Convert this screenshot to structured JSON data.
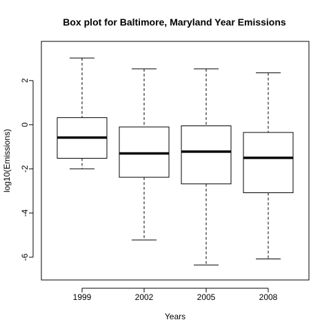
{
  "chart_data": {
    "type": "boxplot",
    "title": "Box plot for Baltimore, Maryland Year Emissions",
    "xlabel": "Years",
    "ylabel": "log10(Emissions)",
    "categories": [
      "1999",
      "2002",
      "2005",
      "2008"
    ],
    "boxes": [
      {
        "category": "1999",
        "whisker_low": -2.0,
        "q1": -1.52,
        "median": -0.58,
        "q3": 0.32,
        "whisker_high": 3.02
      },
      {
        "category": "2002",
        "whisker_low": -5.22,
        "q1": -2.38,
        "median": -1.3,
        "q3": -0.1,
        "whisker_high": 2.53
      },
      {
        "category": "2005",
        "whisker_low": -6.35,
        "q1": -2.68,
        "median": -1.22,
        "q3": -0.05,
        "whisker_high": 2.53
      },
      {
        "category": "2008",
        "whisker_low": -6.08,
        "q1": -3.08,
        "median": -1.5,
        "q3": -0.35,
        "whisker_high": 2.35
      }
    ],
    "yticks": [
      -6,
      -4,
      -2,
      0,
      2
    ],
    "ytick_labels": [
      "-6",
      "-4",
      "-2",
      "0",
      "2"
    ],
    "ylim": [
      -6.75,
      3.4
    ],
    "grid": false,
    "legend": "none",
    "colors": {
      "box_fill": "#ffffff",
      "stroke": "#000000",
      "median": "#000000"
    }
  }
}
